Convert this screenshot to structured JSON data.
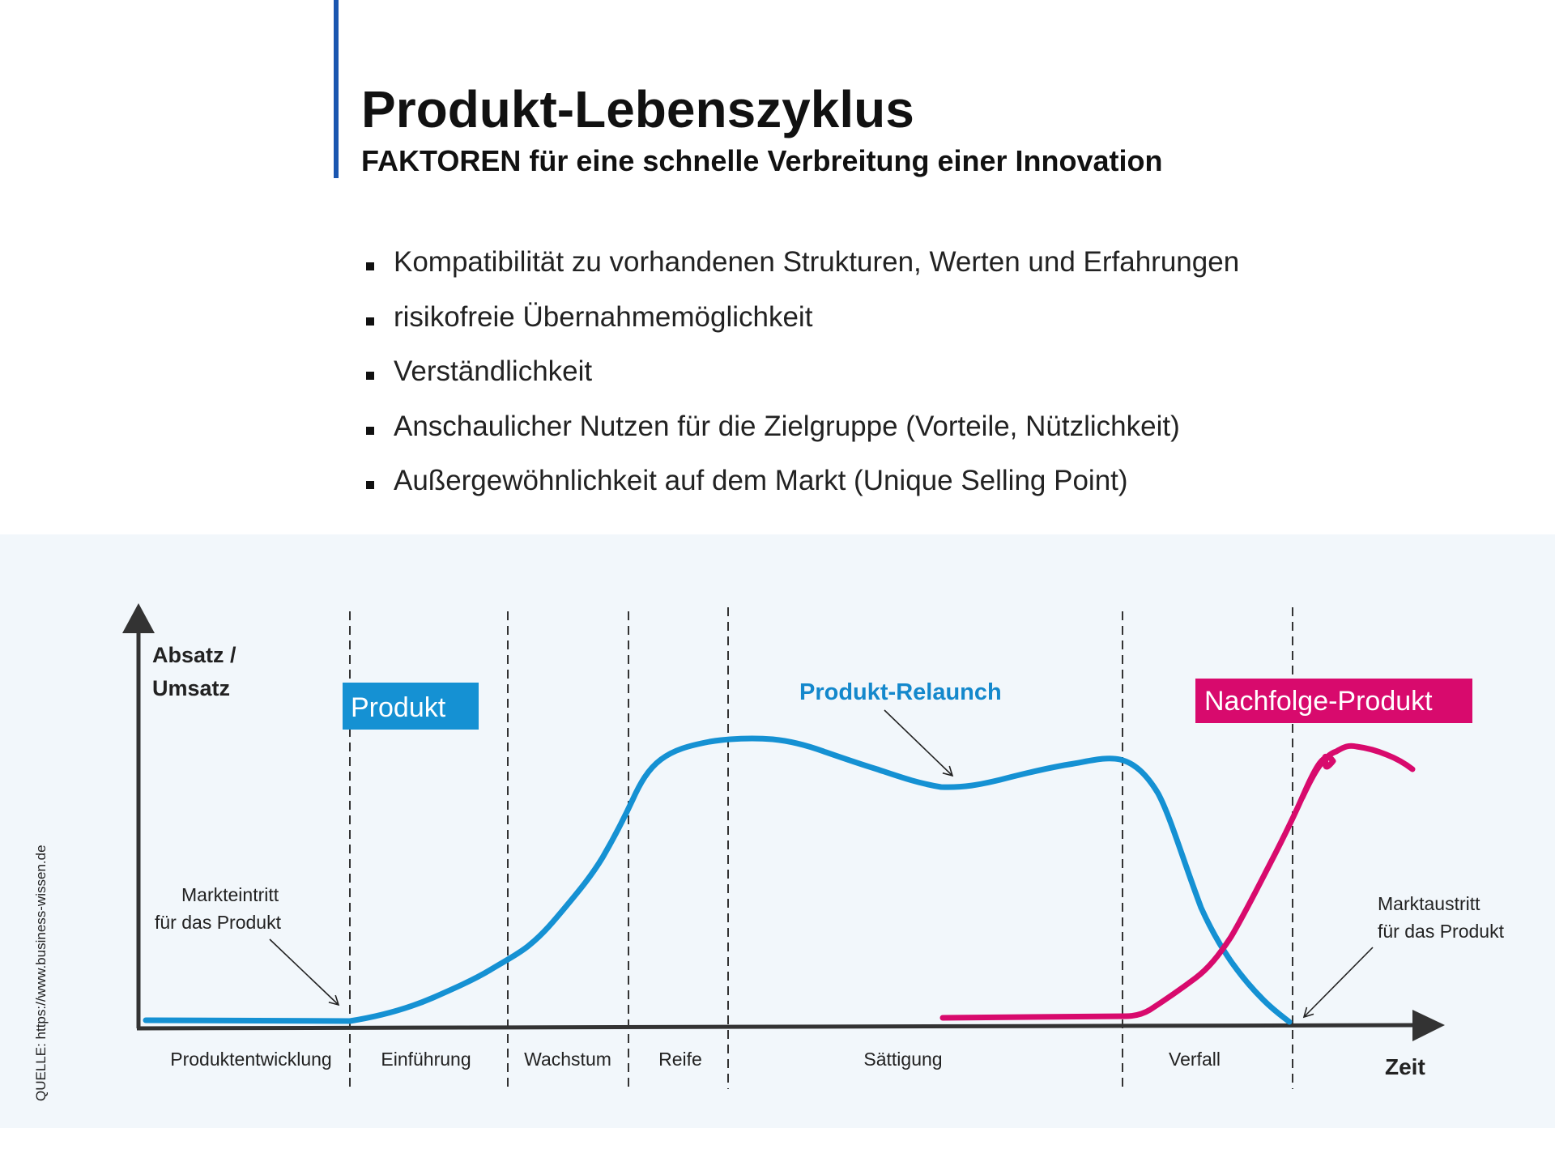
{
  "title": "Produkt-Lebenszyklus",
  "subtitle": "FAKTOREN für eine schnelle Verbreitung einer Innovation",
  "factors": [
    "Kompatibilität zu vorhandenen Strukturen, Werten und Erfahrungen",
    "risikofreie Übernahmemöglichkeit",
    "Verständlichkeit",
    "Anschaulicher Nutzen für die Zielgruppe (Vorteile, Nützlichkeit)",
    "Außergewöhnlichkeit auf dem Markt (Unique Selling Point)"
  ],
  "diagram": {
    "y_axis_label": [
      "Absatz /",
      "Umsatz"
    ],
    "x_axis_label": "Zeit",
    "phases": [
      "Produktentwicklung",
      "Einführung",
      "Wachstum",
      "Reife",
      "Sättigung",
      "Verfall"
    ],
    "series": {
      "product": "Produkt",
      "relaunch": "Produkt-Relaunch",
      "successor": "Nachfolge-Produkt"
    },
    "annotations": {
      "market_entry": [
        "Markteintritt",
        "für das Produkt"
      ],
      "market_exit": [
        "Marktaustritt",
        "für das Produkt"
      ]
    },
    "source": "QUELLE: https://www.business-wissen.de",
    "colors": {
      "accent": "#1a56b0",
      "product": "#1591d3",
      "successor": "#d80a6d",
      "relaunch_text": "#1488cc",
      "axis": "#333333",
      "panel_bg": "#f2f7fb"
    }
  }
}
